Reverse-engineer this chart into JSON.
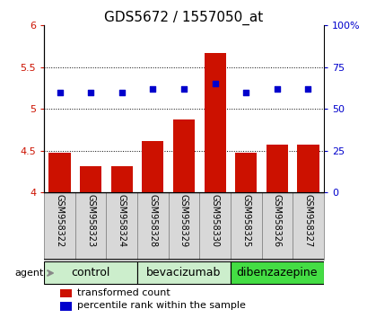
{
  "title": "GDS5672 / 1557050_at",
  "samples": [
    "GSM958322",
    "GSM958323",
    "GSM958324",
    "GSM958328",
    "GSM958329",
    "GSM958330",
    "GSM958325",
    "GSM958326",
    "GSM958327"
  ],
  "bar_values": [
    4.47,
    4.31,
    4.31,
    4.62,
    4.87,
    5.67,
    4.47,
    4.57,
    4.57
  ],
  "percentile_values": [
    60,
    60,
    60,
    62,
    62,
    65,
    60,
    62,
    62
  ],
  "groups": [
    {
      "label": "control",
      "indices": [
        0,
        1,
        2
      ],
      "color": "#cceecc"
    },
    {
      "label": "bevacizumab",
      "indices": [
        3,
        4,
        5
      ],
      "color": "#cceecc"
    },
    {
      "label": "dibenzazepine",
      "indices": [
        6,
        7,
        8
      ],
      "color": "#44dd44"
    }
  ],
  "bar_color": "#cc1100",
  "dot_color": "#0000cc",
  "ylim_left": [
    4.0,
    6.0
  ],
  "ylim_right": [
    0,
    100
  ],
  "yticks_left": [
    4.0,
    4.5,
    5.0,
    5.5,
    6.0
  ],
  "yticks_right": [
    0,
    25,
    50,
    75,
    100
  ],
  "yticklabels_right": [
    "0",
    "25",
    "50",
    "75",
    "100%"
  ],
  "grid_values": [
    4.5,
    5.0,
    5.5
  ],
  "bar_width": 0.7,
  "legend_items": [
    {
      "label": "transformed count",
      "color": "#cc1100"
    },
    {
      "label": "percentile rank within the sample",
      "color": "#0000cc"
    }
  ],
  "agent_label": "agent",
  "title_fontsize": 11,
  "tick_fontsize": 8,
  "group_label_fontsize": 9,
  "legend_fontsize": 8,
  "sample_label_fontsize": 7
}
